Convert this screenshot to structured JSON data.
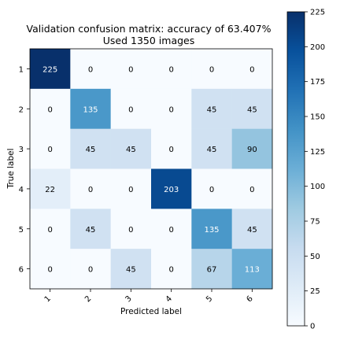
{
  "chart_data": {
    "type": "heatmap",
    "title_line1": "Validation confusion matrix: accuracy of 63.407%",
    "title_line2": "Used 1350 images",
    "xlabel": "Predicted label",
    "ylabel": "True label",
    "x_categories": [
      "1",
      "2",
      "3",
      "4",
      "5",
      "6"
    ],
    "y_categories": [
      "1",
      "2",
      "3",
      "4",
      "5",
      "6"
    ],
    "values": [
      [
        225,
        0,
        0,
        0,
        0,
        0
      ],
      [
        0,
        135,
        0,
        0,
        45,
        45
      ],
      [
        0,
        45,
        45,
        0,
        45,
        90
      ],
      [
        22,
        0,
        0,
        203,
        0,
        0
      ],
      [
        0,
        45,
        0,
        0,
        135,
        45
      ],
      [
        0,
        0,
        45,
        0,
        67,
        113
      ]
    ],
    "colormap": "Blues",
    "color_range": [
      0,
      225
    ],
    "colorbar_ticks": [
      "0",
      "25",
      "50",
      "75",
      "100",
      "125",
      "150",
      "175",
      "200",
      "225"
    ],
    "colors": {
      "low": "#f7fbff",
      "high": "#08306b"
    }
  }
}
